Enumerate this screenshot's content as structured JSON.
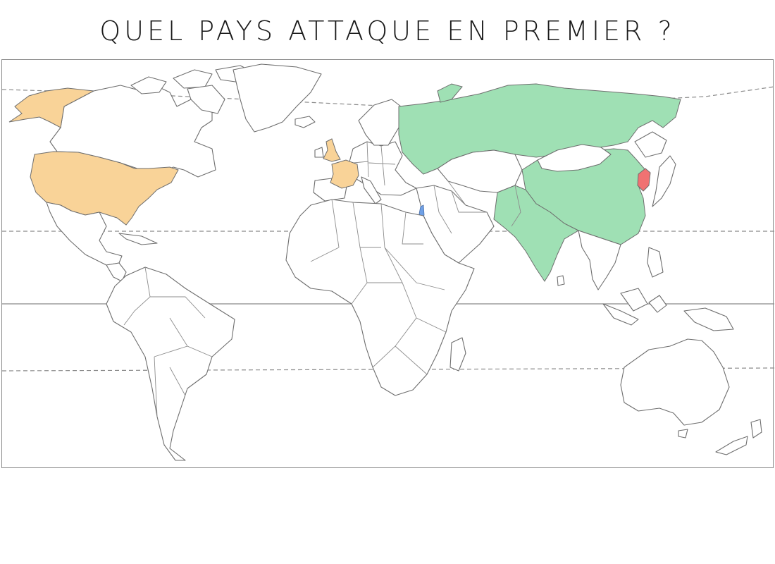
{
  "title": "QUEL PAYS ATTAQUE EN PREMIER ?",
  "colors": {
    "orange": "#f9d398",
    "green": "#9fe0b4",
    "red": "#f07272",
    "blue": "#6fa0e6",
    "outline": "#6e6e6e"
  }
}
